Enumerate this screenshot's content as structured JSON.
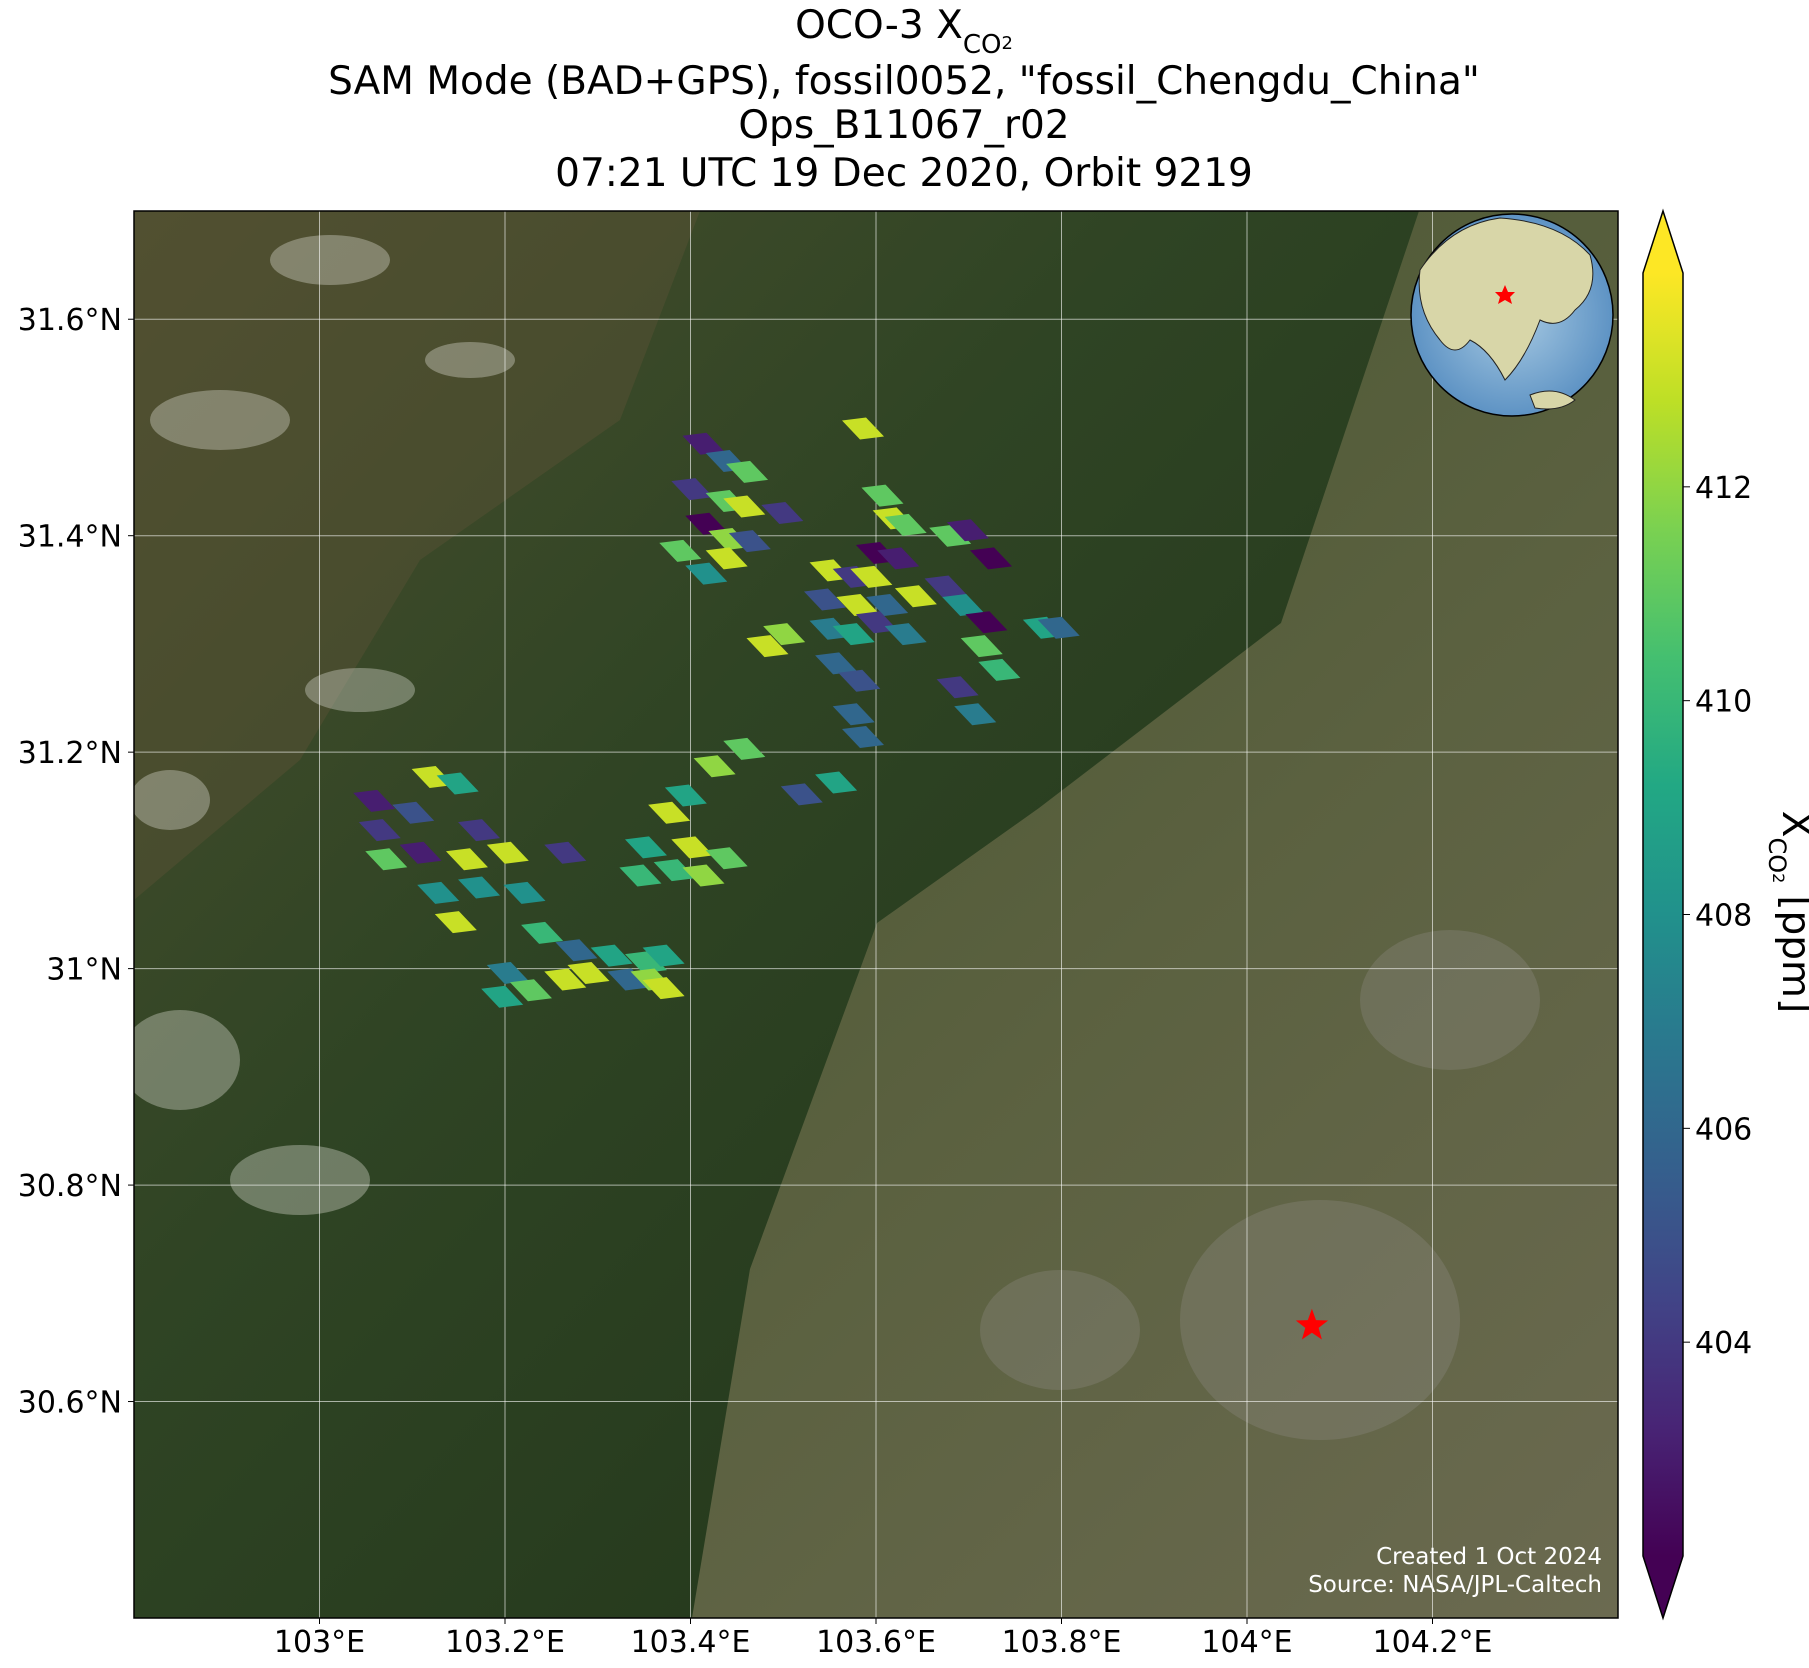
{
  "chart_data": {
    "type": "scatter",
    "title_first": {
      "main": "OCO-3 X",
      "sub": "CO",
      "subsub": "2"
    },
    "title_lines": [
      "SAM Mode (BAD+GPS), fossil0052, \"fossil_Chengdu_China\"",
      "Ops_B11067_r02",
      "07:21 UTC 19 Dec 2020, Orbit 9219"
    ],
    "colorbar_label": {
      "main": "X",
      "sub": "CO",
      "subsub": "2",
      "unit": "[ppm]"
    },
    "footnotes": [
      "Created 1 Oct 2024",
      "Source: NASA/JPL-Caltech"
    ],
    "xlim": [
      102.8,
      104.4
    ],
    "ylim": [
      30.4,
      31.7
    ],
    "xticks": [
      {
        "value": 103,
        "label": "103°E"
      },
      {
        "value": 103.2,
        "label": "103.2°E"
      },
      {
        "value": 103.4,
        "label": "103.4°E"
      },
      {
        "value": 103.6,
        "label": "103.6°E"
      },
      {
        "value": 103.8,
        "label": "103.8°E"
      },
      {
        "value": 104,
        "label": "104°E"
      },
      {
        "value": 104.2,
        "label": "104.2°E"
      }
    ],
    "yticks": [
      {
        "value": 30.6,
        "label": "30.6°N"
      },
      {
        "value": 30.8,
        "label": "30.8°N"
      },
      {
        "value": 31,
        "label": "31°N"
      },
      {
        "value": 31.2,
        "label": "31.2°N"
      },
      {
        "value": 31.4,
        "label": "31.4°N"
      },
      {
        "value": 31.6,
        "label": "31.6°N"
      }
    ],
    "grid": true,
    "clim": [
      402,
      414
    ],
    "cticks": [
      404,
      406,
      408,
      410,
      412
    ],
    "colormap": [
      "#440154",
      "#482475",
      "#414487",
      "#355f8d",
      "#2a788e",
      "#21918c",
      "#22a884",
      "#44bf70",
      "#7ad151",
      "#bddf26",
      "#fde725"
    ],
    "marker": {
      "lon": 104.07,
      "lat": 30.67,
      "color": "#ff0000"
    },
    "x": [
      103.414,
      103.439,
      103.461,
      103.402,
      103.439,
      103.458,
      103.499,
      103.417,
      103.442,
      103.464,
      103.389,
      103.417,
      103.439,
      103.586,
      103.607,
      103.619,
      103.632,
      103.601,
      103.551,
      103.576,
      103.595,
      103.545,
      103.58,
      103.612,
      103.643,
      103.68,
      103.699,
      103.724,
      103.675,
      103.694,
      103.719,
      103.501,
      103.483,
      103.551,
      103.576,
      103.601,
      103.632,
      103.557,
      103.582,
      103.714,
      103.733,
      103.688,
      103.707,
      103.576,
      103.586,
      103.781,
      103.797,
      103.624,
      103.458,
      103.426,
      103.395,
      103.377,
      103.52,
      103.557,
      103.352,
      103.402,
      103.439,
      103.346,
      103.383,
      103.414,
      103.122,
      103.149,
      103.059,
      103.101,
      103.172,
      103.065,
      103.072,
      103.109,
      103.159,
      103.203,
      103.128,
      103.172,
      103.221,
      103.147,
      103.265,
      103.24,
      103.277,
      103.315,
      103.352,
      103.371,
      103.265,
      103.29,
      103.333,
      103.358,
      103.203,
      103.228,
      103.197,
      103.371
    ],
    "y": [
      31.485,
      31.469,
      31.459,
      31.443,
      31.432,
      31.427,
      31.421,
      31.411,
      31.397,
      31.395,
      31.386,
      31.365,
      31.379,
      31.499,
      31.437,
      31.416,
      31.41,
      31.384,
      31.368,
      31.362,
      31.362,
      31.341,
      31.336,
      31.336,
      31.344,
      31.4,
      31.405,
      31.379,
      31.353,
      31.336,
      31.32,
      31.309,
      31.298,
      31.314,
      31.309,
      31.32,
      31.309,
      31.282,
      31.266,
      31.298,
      31.276,
      31.26,
      31.235,
      31.235,
      31.214,
      31.315,
      31.315,
      31.379,
      31.203,
      31.187,
      31.16,
      31.144,
      31.161,
      31.172,
      31.112,
      31.112,
      31.102,
      31.086,
      31.091,
      31.086,
      31.177,
      31.171,
      31.155,
      31.144,
      31.128,
      31.128,
      31.101,
      31.107,
      31.101,
      31.107,
      31.07,
      31.075,
      31.07,
      31.043,
      31.107,
      31.033,
      31.017,
      31.012,
      31.006,
      31.012,
      30.99,
      30.996,
      30.99,
      30.99,
      30.996,
      30.98,
      30.974,
      30.982
    ],
    "values": [
      403,
      406,
      411,
      404,
      411,
      413,
      404,
      402,
      412,
      405,
      411,
      408,
      413,
      413,
      411,
      413,
      411,
      402,
      413,
      404,
      413,
      405,
      413,
      406,
      413,
      411,
      403,
      402,
      404,
      408,
      402,
      412,
      413,
      407,
      409,
      404,
      407,
      406,
      405,
      411,
      410,
      404,
      407,
      406,
      406,
      409,
      406,
      403,
      411,
      412,
      409,
      413,
      405,
      409,
      409,
      413,
      411,
      410,
      410,
      412,
      413,
      409,
      403,
      405,
      404,
      404,
      411,
      403,
      413,
      413,
      408,
      408,
      408,
      413,
      404,
      410,
      406,
      409,
      410,
      409,
      413,
      413,
      406,
      412,
      407,
      411,
      409,
      413
    ]
  }
}
